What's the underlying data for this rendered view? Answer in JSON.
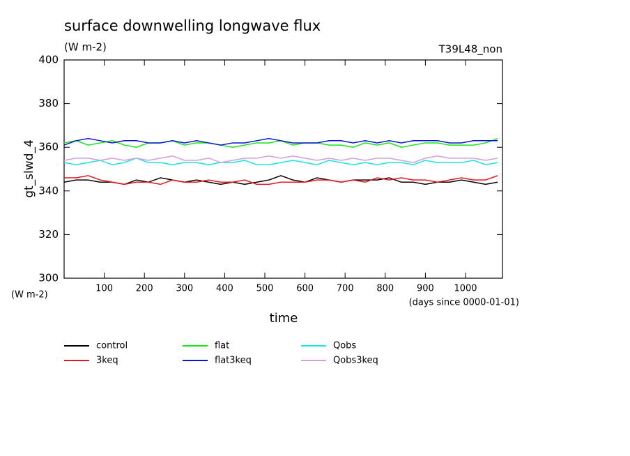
{
  "chart_data": {
    "type": "line",
    "title": "surface downwelling longwave flux",
    "subtitle": "(W m-2)",
    "annotation": "T39L48_non",
    "ylabel": "gt_slwd_4",
    "y_unit": "(W m-2)",
    "xlabel": "time",
    "x_unit": "(days since 0000-01-01)",
    "x": [
      0,
      30,
      60,
      90,
      120,
      150,
      180,
      210,
      240,
      270,
      300,
      330,
      360,
      390,
      420,
      450,
      480,
      510,
      540,
      570,
      600,
      630,
      660,
      690,
      720,
      750,
      780,
      810,
      840,
      870,
      900,
      930,
      960,
      990,
      1020,
      1050,
      1080
    ],
    "xlim": [
      0,
      1092
    ],
    "xticks": [
      100,
      200,
      300,
      400,
      500,
      600,
      700,
      800,
      900,
      1000
    ],
    "ylim": [
      300,
      400
    ],
    "yticks": [
      300,
      320,
      340,
      360,
      380,
      400
    ],
    "series": [
      {
        "name": "control",
        "color": "#000000",
        "values": [
          344,
          345,
          345,
          344,
          344,
          343,
          345,
          344,
          346,
          345,
          344,
          345,
          344,
          343,
          344,
          343,
          344,
          345,
          347,
          345,
          344,
          346,
          345,
          344,
          345,
          345,
          345,
          346,
          344,
          344,
          343,
          344,
          344,
          345,
          344,
          343,
          344
        ]
      },
      {
        "name": "3keq",
        "color": "#e8141b",
        "values": [
          346,
          346,
          347,
          345,
          344,
          343,
          344,
          344,
          343,
          345,
          344,
          344,
          345,
          344,
          344,
          345,
          343,
          343,
          344,
          344,
          344,
          345,
          345,
          344,
          345,
          344,
          346,
          345,
          346,
          345,
          345,
          344,
          345,
          346,
          345,
          345,
          347
        ]
      },
      {
        "name": "flat",
        "color": "#14e614",
        "values": [
          362,
          363,
          361,
          362,
          363,
          361,
          360,
          362,
          362,
          363,
          361,
          362,
          362,
          361,
          360,
          361,
          362,
          362,
          363,
          361,
          362,
          362,
          361,
          361,
          360,
          362,
          361,
          362,
          360,
          361,
          362,
          362,
          361,
          361,
          361,
          362,
          364
        ]
      },
      {
        "name": "flat3keq",
        "color": "#0a14d2",
        "values": [
          361,
          363,
          364,
          363,
          362,
          363,
          363,
          362,
          362,
          363,
          362,
          363,
          362,
          361,
          362,
          362,
          363,
          364,
          363,
          362,
          362,
          362,
          363,
          363,
          362,
          363,
          362,
          363,
          362,
          363,
          363,
          363,
          362,
          362,
          363,
          363,
          363
        ]
      },
      {
        "name": "Qobs",
        "color": "#14e6e6",
        "values": [
          353,
          352,
          353,
          354,
          352,
          353,
          355,
          353,
          353,
          352,
          353,
          353,
          352,
          353,
          353,
          354,
          352,
          352,
          353,
          354,
          353,
          352,
          354,
          353,
          352,
          353,
          352,
          353,
          353,
          352,
          354,
          353,
          353,
          353,
          354,
          352,
          353
        ]
      },
      {
        "name": "Qobs3keq",
        "color": "#d2a0d7",
        "values": [
          354,
          355,
          355,
          354,
          355,
          354,
          355,
          354,
          355,
          356,
          354,
          354,
          355,
          353,
          354,
          355,
          355,
          356,
          355,
          356,
          355,
          354,
          355,
          354,
          355,
          354,
          355,
          355,
          354,
          353,
          355,
          356,
          355,
          355,
          355,
          354,
          355
        ]
      }
    ]
  }
}
